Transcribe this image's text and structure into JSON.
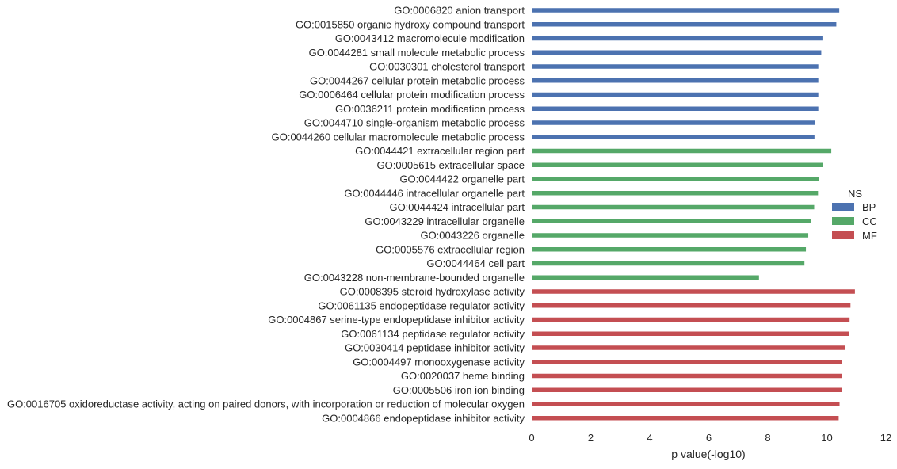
{
  "chart_data": {
    "type": "bar",
    "orientation": "horizontal",
    "title": "",
    "xlabel": "p value(-log10)",
    "ylabel": "",
    "xlim": [
      0,
      12
    ],
    "xticks": [
      "0",
      "2",
      "4",
      "6",
      "8",
      "10",
      "12"
    ],
    "grid": false,
    "legend": {
      "title": "NS",
      "placement": "right",
      "entries": [
        {
          "name": "BP",
          "color": "#4c72b0"
        },
        {
          "name": "CC",
          "color": "#55a868"
        },
        {
          "name": "MF",
          "color": "#c44e52"
        }
      ]
    },
    "categories": [
      "GO:0006820 anion transport",
      "GO:0015850 organic hydroxy compound transport",
      "GO:0043412 macromolecule modification",
      "GO:0044281 small molecule metabolic process",
      "GO:0030301 cholesterol transport",
      "GO:0044267 cellular protein metabolic process",
      "GO:0006464 cellular protein modification process",
      "GO:0036211 protein modification process",
      "GO:0044710 single-organism metabolic process",
      "GO:0044260 cellular macromolecule metabolic process",
      "GO:0044421 extracellular region part",
      "GO:0005615 extracellular space",
      "GO:0044422 organelle part",
      "GO:0044446 intracellular organelle part",
      "GO:0044424 intracellular part",
      "GO:0043229 intracellular organelle",
      "GO:0043226 organelle",
      "GO:0005576 extracellular region",
      "GO:0044464 cell part",
      "GO:0043228 non-membrane-bounded organelle",
      "GO:0008395 steroid hydroxylase activity",
      "GO:0061135 endopeptidase regulator activity",
      "GO:0004867 serine-type endopeptidase inhibitor activity",
      "GO:0061134 peptidase regulator activity",
      "GO:0030414 peptidase inhibitor activity",
      "GO:0004497 monooxygenase activity",
      "GO:0020037 heme binding",
      "GO:0005506 iron ion binding",
      "GO:0016705 oxidoreductase activity, acting on paired donors, with incorporation or reduction of molecular oxygen",
      "GO:0004866 endopeptidase inhibitor activity"
    ],
    "series": [
      {
        "name": "BP",
        "color": "#4c72b0",
        "values": [
          10.42,
          10.32,
          9.85,
          9.81,
          9.71,
          9.71,
          9.71,
          9.71,
          9.6,
          9.58,
          null,
          null,
          null,
          null,
          null,
          null,
          null,
          null,
          null,
          null,
          null,
          null,
          null,
          null,
          null,
          null,
          null,
          null,
          null,
          null
        ]
      },
      {
        "name": "CC",
        "color": "#55a868",
        "values": [
          null,
          null,
          null,
          null,
          null,
          null,
          null,
          null,
          null,
          null,
          10.15,
          9.87,
          9.73,
          9.7,
          9.57,
          9.47,
          9.37,
          9.29,
          9.24,
          7.7,
          null,
          null,
          null,
          null,
          null,
          null,
          null,
          null,
          null,
          null
        ]
      },
      {
        "name": "MF",
        "color": "#c44e52",
        "values": [
          null,
          null,
          null,
          null,
          null,
          null,
          null,
          null,
          null,
          null,
          null,
          null,
          null,
          null,
          null,
          null,
          null,
          null,
          null,
          null,
          10.95,
          10.8,
          10.77,
          10.75,
          10.62,
          10.52,
          10.52,
          10.5,
          10.43,
          10.4
        ]
      }
    ]
  }
}
